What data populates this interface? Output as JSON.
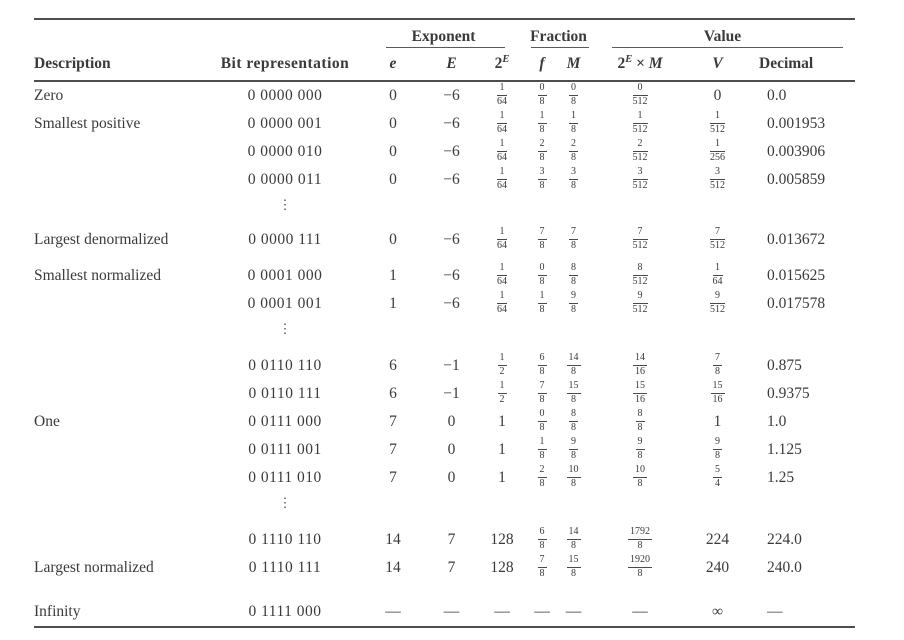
{
  "table": {
    "dots_glyph": "⋮",
    "groups": [
      {
        "label": "",
        "span": 2
      },
      {
        "label": "Exponent",
        "span": 3
      },
      {
        "label": "Fraction",
        "span": 2
      },
      {
        "label": "Value",
        "span": 3
      }
    ],
    "columns": [
      "Description",
      "Bit representation",
      "e",
      "E",
      "2^E",
      "f",
      "M",
      "2^E × M",
      "V",
      "Decimal"
    ],
    "rows": [
      {
        "cells": [
          "Zero",
          "0 0000 000",
          "0",
          "−6",
          "1/64",
          "0/8",
          "0/8",
          "0/512",
          "0",
          "0.0"
        ]
      },
      {
        "cells": [
          "Smallest positive",
          "0 0000 001",
          "0",
          "−6",
          "1/64",
          "1/8",
          "1/8",
          "1/512",
          "1/512",
          "0.001953"
        ]
      },
      {
        "cells": [
          "",
          "0 0000 010",
          "0",
          "−6",
          "1/64",
          "2/8",
          "2/8",
          "2/512",
          "1/256",
          "0.003906"
        ]
      },
      {
        "cells": [
          "",
          "0 0000 011",
          "0",
          "−6",
          "1/64",
          "3/8",
          "3/8",
          "3/512",
          "3/512",
          "0.005859"
        ]
      },
      {
        "dots": true
      },
      {
        "gap": 10,
        "cells": [
          "Largest denormalized",
          "0 0000 111",
          "0",
          "−6",
          "1/64",
          "7/8",
          "7/8",
          "7/512",
          "7/512",
          "0.013672"
        ]
      },
      {
        "gap": 8,
        "cells": [
          "Smallest normalized",
          "0 0001 000",
          "1",
          "−6",
          "1/64",
          "0/8",
          "8/8",
          "8/512",
          "1/64",
          "0.015625"
        ]
      },
      {
        "cells": [
          "",
          "0 0001 001",
          "1",
          "−6",
          "1/64",
          "1/8",
          "9/8",
          "9/512",
          "9/512",
          "0.017578"
        ]
      },
      {
        "dots": true
      },
      {
        "gap": 12,
        "cells": [
          "",
          "0 0110 110",
          "6",
          "−1",
          "1/2",
          "6/8",
          "14/8",
          "14/16",
          "7/8",
          "0.875"
        ]
      },
      {
        "cells": [
          "",
          "0 0110 111",
          "6",
          "−1",
          "1/2",
          "7/8",
          "15/8",
          "15/16",
          "15/16",
          "0.9375"
        ]
      },
      {
        "cells": [
          "One",
          "0 0111 000",
          "7",
          "0",
          "1",
          "0/8",
          "8/8",
          "8/8",
          "1",
          "1.0"
        ]
      },
      {
        "cells": [
          "",
          "0 0111 001",
          "7",
          "0",
          "1",
          "1/8",
          "9/8",
          "9/8",
          "9/8",
          "1.125"
        ]
      },
      {
        "cells": [
          "",
          "0 0111 010",
          "7",
          "0",
          "1",
          "2/8",
          "10/8",
          "10/8",
          "5/4",
          "1.25"
        ]
      },
      {
        "dots": true
      },
      {
        "gap": 12,
        "cells": [
          "",
          "0 1110 110",
          "14",
          "7",
          "128",
          "6/8",
          "14/8",
          "1792/8",
          "224",
          "224.0"
        ]
      },
      {
        "cells": [
          "Largest normalized",
          "0 1110 111",
          "14",
          "7",
          "128",
          "7/8",
          "15/8",
          "1920/8",
          "240",
          "240.0"
        ]
      },
      {
        "gap": 16,
        "cells": [
          "Infinity",
          "0 1111 000",
          "—",
          "—",
          "—",
          "—",
          "—",
          "—",
          "∞",
          "—"
        ]
      }
    ]
  }
}
